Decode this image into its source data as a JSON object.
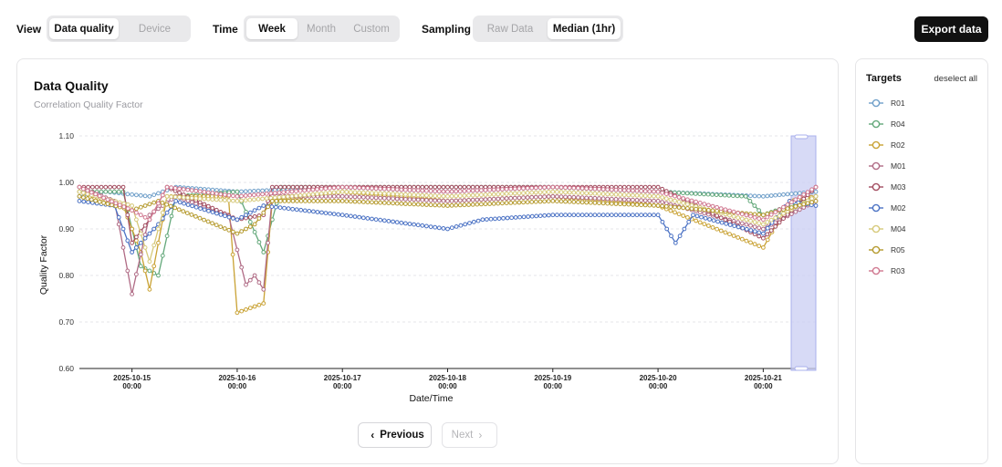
{
  "toolbar": {
    "view": {
      "label": "View",
      "options": [
        "Data quality",
        "Device"
      ],
      "active": "Data quality"
    },
    "time": {
      "label": "Time",
      "options": [
        "Week",
        "Month",
        "Custom"
      ],
      "active": "Week"
    },
    "sampling": {
      "label": "Sampling",
      "options": [
        "Raw Data",
        "Median (1hr)"
      ],
      "active": "Median (1hr)"
    },
    "export_label": "Export data"
  },
  "chart": {
    "title": "Data Quality",
    "subtitle": "Correlation Quality Factor"
  },
  "pager": {
    "previous": "Previous",
    "next": "Next",
    "chevron_left": "‹",
    "chevron_right": "›"
  },
  "targets": {
    "title": "Targets",
    "deselect_label": "deselect all",
    "items": [
      {
        "name": "R01",
        "color": "#6f9fc9"
      },
      {
        "name": "R04",
        "color": "#63a87a"
      },
      {
        "name": "R02",
        "color": "#c9a234"
      },
      {
        "name": "M01",
        "color": "#b06b85"
      },
      {
        "name": "M03",
        "color": "#a34d60"
      },
      {
        "name": "M02",
        "color": "#4b72c4"
      },
      {
        "name": "M04",
        "color": "#d6c97a"
      },
      {
        "name": "R05",
        "color": "#b59a2e"
      },
      {
        "name": "R03",
        "color": "#d07890"
      }
    ]
  },
  "chart_data": {
    "type": "line",
    "title": "Data Quality",
    "subtitle": "Correlation Quality Factor",
    "xlabel": "Date/Time",
    "ylabel": "Quality Factor",
    "ylim": [
      0.6,
      1.1
    ],
    "yticks": [
      "1.10",
      "1.00",
      "0.90",
      "0.80",
      "0.70",
      "0.60"
    ],
    "x_range": [
      "2025-10-14 12:00",
      "2025-10-21 12:00"
    ],
    "xticks": [
      {
        "date": "2025-10-15",
        "time": "00:00"
      },
      {
        "date": "2025-10-16",
        "time": "00:00"
      },
      {
        "date": "2025-10-17",
        "time": "00:00"
      },
      {
        "date": "2025-10-18",
        "time": "00:00"
      },
      {
        "date": "2025-10-19",
        "time": "00:00"
      },
      {
        "date": "2025-10-20",
        "time": "00:00"
      },
      {
        "date": "2025-10-21",
        "time": "00:00"
      }
    ],
    "grid": true,
    "legend": "right panel",
    "selection_brush": true,
    "series": [
      {
        "name": "R01",
        "color": "#6f9fc9",
        "points": [
          [
            "2025-10-14 12:00",
            0.97
          ],
          [
            "2025-10-14 18:00",
            0.98
          ],
          [
            "2025-10-15 04:00",
            0.97
          ],
          [
            "2025-10-15 10:00",
            0.99
          ],
          [
            "2025-10-16 00:00",
            0.98
          ],
          [
            "2025-10-17 00:00",
            0.99
          ],
          [
            "2025-10-18 00:00",
            0.98
          ],
          [
            "2025-10-19 00:00",
            0.99
          ],
          [
            "2025-10-20 00:00",
            0.98
          ],
          [
            "2025-10-21 00:00",
            0.97
          ],
          [
            "2025-10-21 12:00",
            0.98
          ]
        ]
      },
      {
        "name": "R04",
        "color": "#63a87a",
        "points": [
          [
            "2025-10-14 12:00",
            0.98
          ],
          [
            "2025-10-14 22:00",
            0.98
          ],
          [
            "2025-10-15 02:00",
            0.82
          ],
          [
            "2025-10-15 06:00",
            0.8
          ],
          [
            "2025-10-15 10:00",
            0.97
          ],
          [
            "2025-10-16 00:00",
            0.98
          ],
          [
            "2025-10-16 06:00",
            0.85
          ],
          [
            "2025-10-16 10:00",
            0.99
          ],
          [
            "2025-10-17 00:00",
            0.99
          ],
          [
            "2025-10-18 00:00",
            0.99
          ],
          [
            "2025-10-19 00:00",
            0.99
          ],
          [
            "2025-10-20 00:00",
            0.98
          ],
          [
            "2025-10-20 20:00",
            0.97
          ],
          [
            "2025-10-21 00:00",
            0.93
          ],
          [
            "2025-10-21 12:00",
            0.97
          ]
        ]
      },
      {
        "name": "R02",
        "color": "#c9a234",
        "points": [
          [
            "2025-10-14 12:00",
            0.98
          ],
          [
            "2025-10-14 22:00",
            0.95
          ],
          [
            "2025-10-15 02:00",
            0.85
          ],
          [
            "2025-10-15 04:00",
            0.77
          ],
          [
            "2025-10-15 08:00",
            0.97
          ],
          [
            "2025-10-15 22:00",
            0.97
          ],
          [
            "2025-10-16 00:00",
            0.72
          ],
          [
            "2025-10-16 06:00",
            0.74
          ],
          [
            "2025-10-16 08:00",
            0.96
          ],
          [
            "2025-10-17 00:00",
            0.98
          ],
          [
            "2025-10-18 00:00",
            0.96
          ],
          [
            "2025-10-19 00:00",
            0.97
          ],
          [
            "2025-10-20 00:00",
            0.95
          ],
          [
            "2025-10-21 00:00",
            0.86
          ],
          [
            "2025-10-21 06:00",
            0.96
          ],
          [
            "2025-10-21 12:00",
            0.97
          ]
        ]
      },
      {
        "name": "M01",
        "color": "#b06b85",
        "points": [
          [
            "2025-10-14 12:00",
            0.99
          ],
          [
            "2025-10-14 20:00",
            0.96
          ],
          [
            "2025-10-15 00:00",
            0.76
          ],
          [
            "2025-10-15 04:00",
            0.93
          ],
          [
            "2025-10-15 10:00",
            0.97
          ],
          [
            "2025-10-15 22:00",
            0.93
          ],
          [
            "2025-10-16 02:00",
            0.78
          ],
          [
            "2025-10-16 04:00",
            0.8
          ],
          [
            "2025-10-16 06:00",
            0.77
          ],
          [
            "2025-10-16 08:00",
            0.97
          ],
          [
            "2025-10-17 00:00",
            0.97
          ],
          [
            "2025-10-18 00:00",
            0.96
          ],
          [
            "2025-10-19 00:00",
            0.97
          ],
          [
            "2025-10-20 00:00",
            0.96
          ],
          [
            "2025-10-21 00:00",
            0.9
          ],
          [
            "2025-10-21 12:00",
            0.96
          ]
        ]
      },
      {
        "name": "M03",
        "color": "#a34d60",
        "points": [
          [
            "2025-10-14 12:00",
            0.99
          ],
          [
            "2025-10-14 22:00",
            0.99
          ],
          [
            "2025-10-15 00:00",
            0.87
          ],
          [
            "2025-10-15 04:00",
            0.92
          ],
          [
            "2025-10-15 08:00",
            0.99
          ],
          [
            "2025-10-16 00:00",
            0.92
          ],
          [
            "2025-10-16 06:00",
            0.93
          ],
          [
            "2025-10-16 08:00",
            0.99
          ],
          [
            "2025-10-17 00:00",
            0.99
          ],
          [
            "2025-10-18 00:00",
            0.99
          ],
          [
            "2025-10-19 00:00",
            0.99
          ],
          [
            "2025-10-20 00:00",
            0.99
          ],
          [
            "2025-10-21 00:00",
            0.88
          ],
          [
            "2025-10-21 12:00",
            0.99
          ]
        ]
      },
      {
        "name": "M02",
        "color": "#4b72c4",
        "points": [
          [
            "2025-10-14 12:00",
            0.96
          ],
          [
            "2025-10-14 20:00",
            0.95
          ],
          [
            "2025-10-15 00:00",
            0.85
          ],
          [
            "2025-10-15 06:00",
            0.91
          ],
          [
            "2025-10-15 10:00",
            0.96
          ],
          [
            "2025-10-16 00:00",
            0.92
          ],
          [
            "2025-10-16 06:00",
            0.95
          ],
          [
            "2025-10-17 00:00",
            0.93
          ],
          [
            "2025-10-18 00:00",
            0.9
          ],
          [
            "2025-10-18 08:00",
            0.92
          ],
          [
            "2025-10-19 00:00",
            0.93
          ],
          [
            "2025-10-20 00:00",
            0.93
          ],
          [
            "2025-10-20 04:00",
            0.87
          ],
          [
            "2025-10-20 08:00",
            0.93
          ],
          [
            "2025-10-21 00:00",
            0.89
          ],
          [
            "2025-10-21 06:00",
            0.96
          ],
          [
            "2025-10-21 12:00",
            0.95
          ]
        ]
      },
      {
        "name": "M04",
        "color": "#d6c97a",
        "points": [
          [
            "2025-10-14 12:00",
            0.98
          ],
          [
            "2025-10-15 00:00",
            0.95
          ],
          [
            "2025-10-15 04:00",
            0.83
          ],
          [
            "2025-10-15 08:00",
            0.97
          ],
          [
            "2025-10-16 00:00",
            0.96
          ],
          [
            "2025-10-17 00:00",
            0.98
          ],
          [
            "2025-10-18 00:00",
            0.97
          ],
          [
            "2025-10-19 00:00",
            0.98
          ],
          [
            "2025-10-20 00:00",
            0.97
          ],
          [
            "2025-10-21 00:00",
            0.91
          ],
          [
            "2025-10-21 12:00",
            0.97
          ]
        ]
      },
      {
        "name": "R05",
        "color": "#b59a2e",
        "points": [
          [
            "2025-10-14 12:00",
            0.97
          ],
          [
            "2025-10-15 00:00",
            0.94
          ],
          [
            "2025-10-15 06:00",
            0.96
          ],
          [
            "2025-10-16 00:00",
            0.89
          ],
          [
            "2025-10-16 04:00",
            0.91
          ],
          [
            "2025-10-16 08:00",
            0.96
          ],
          [
            "2025-10-17 00:00",
            0.96
          ],
          [
            "2025-10-18 00:00",
            0.95
          ],
          [
            "2025-10-19 00:00",
            0.96
          ],
          [
            "2025-10-20 00:00",
            0.95
          ],
          [
            "2025-10-21 00:00",
            0.93
          ],
          [
            "2025-10-21 12:00",
            0.96
          ]
        ]
      },
      {
        "name": "R03",
        "color": "#d07890",
        "points": [
          [
            "2025-10-14 12:00",
            0.99
          ],
          [
            "2025-10-15 00:00",
            0.94
          ],
          [
            "2025-10-15 04:00",
            0.92
          ],
          [
            "2025-10-15 08:00",
            0.99
          ],
          [
            "2025-10-16 00:00",
            0.97
          ],
          [
            "2025-10-17 00:00",
            0.99
          ],
          [
            "2025-10-18 00:00",
            0.98
          ],
          [
            "2025-10-19 00:00",
            0.99
          ],
          [
            "2025-10-20 00:00",
            0.98
          ],
          [
            "2025-10-21 00:00",
            0.92
          ],
          [
            "2025-10-21 12:00",
            0.99
          ]
        ]
      }
    ]
  }
}
